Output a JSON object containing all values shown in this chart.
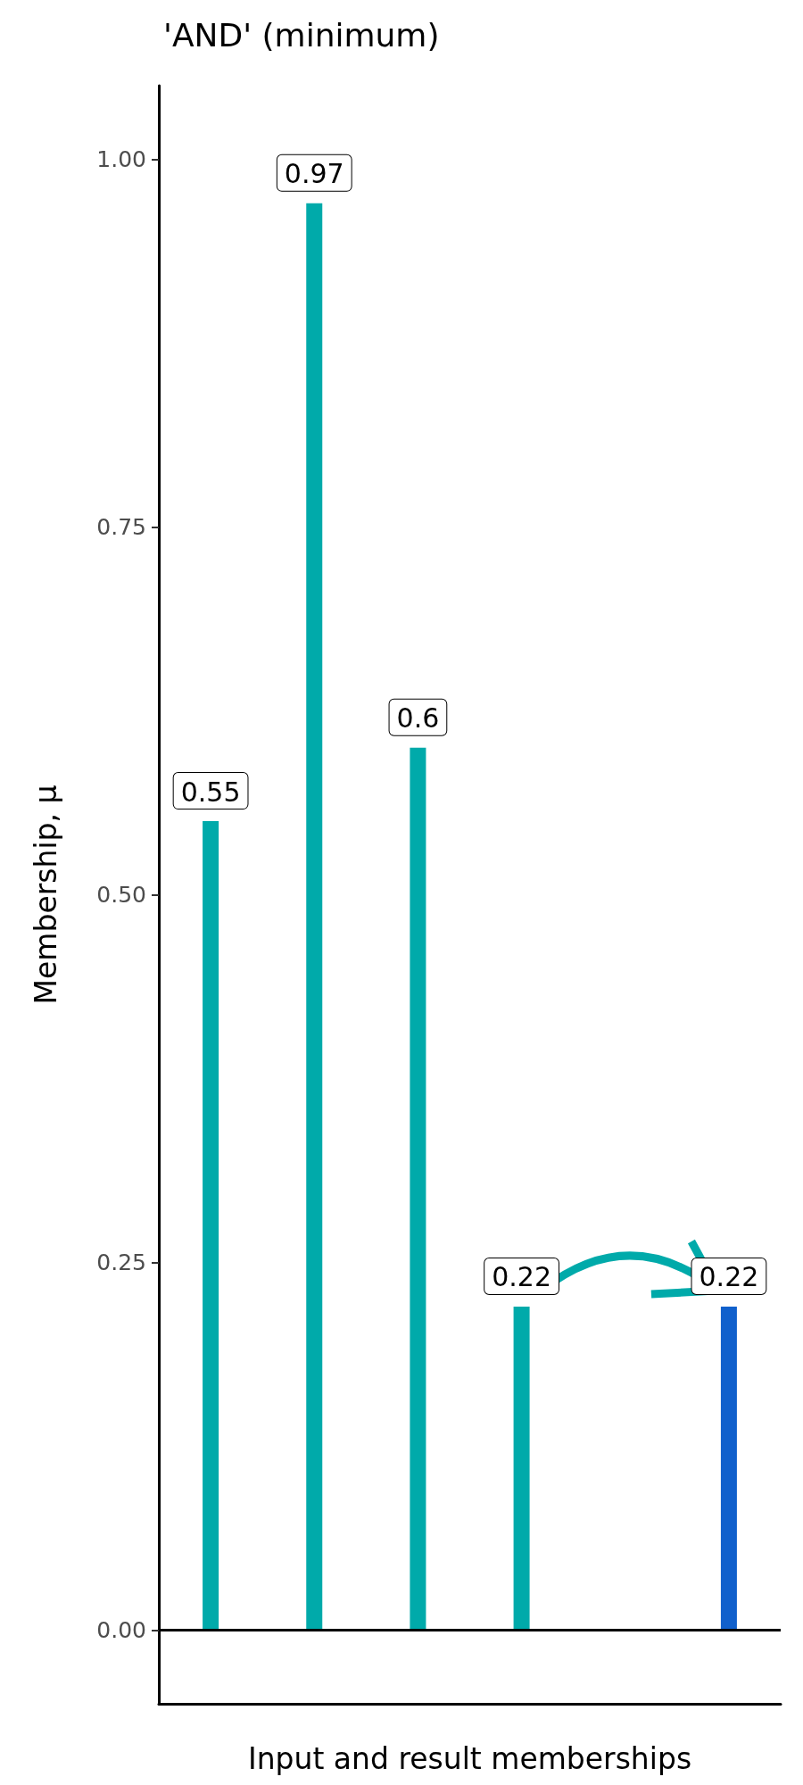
{
  "chart_data": {
    "type": "bar",
    "title": "'AND' (minimum)",
    "xlabel": "Input and result memberships",
    "ylabel": "Membership, μ",
    "categories": [
      null,
      null,
      null,
      null,
      null,
      null
    ],
    "values": [
      0.55,
      0.97,
      0.6,
      0.22,
      null,
      0.22
    ],
    "colors": [
      "#00aaaa",
      "#00aaaa",
      "#00aaaa",
      "#00aaaa",
      null,
      "#1060cc"
    ],
    "ylim": [
      -0.05,
      1.05
    ],
    "yticks": [
      {
        "value": 0,
        "label": "0.00"
      },
      {
        "value": 0.25,
        "label": "0.25"
      },
      {
        "value": 0.5,
        "label": "0.50"
      },
      {
        "value": 0.75,
        "label": "0.75"
      },
      {
        "value": 1,
        "label": "1.00"
      }
    ],
    "ref_lines": [
      {
        "axis": "y",
        "value": 0,
        "color": "#000000"
      }
    ],
    "data_labels": true,
    "grid": false
  }
}
